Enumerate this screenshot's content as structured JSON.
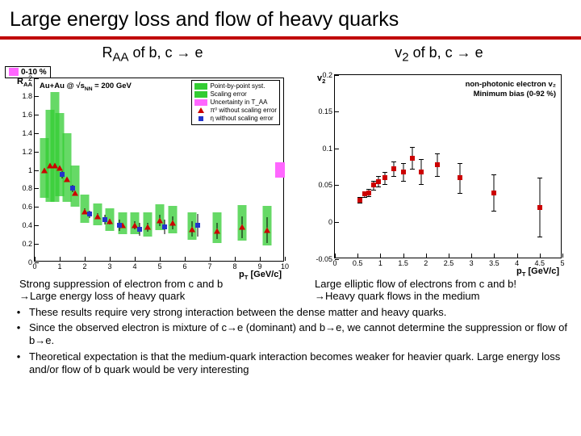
{
  "title": "Large energy loss and flow of heavy quarks",
  "left_chart": {
    "subtitle_html": "R<sub>AA</sub> of b, c → e",
    "type": "scatter",
    "background_color": "#ffffff",
    "ylim": [
      0,
      2.0
    ],
    "xlim": [
      0,
      10
    ],
    "xticks": [
      0,
      1,
      2,
      3,
      4,
      5,
      6,
      7,
      8,
      9,
      10
    ],
    "yticks": [
      0,
      0.2,
      0.4,
      0.6,
      0.8,
      1.0,
      1.2,
      1.4,
      1.6,
      1.8,
      2.0
    ],
    "y_axis_title": "R_AA",
    "x_axis_title": "p_T [GeV/c]",
    "info_badge": {
      "color_sw": "#ff66ff",
      "text": "0-10 %"
    },
    "au_text": "Au+Au @ √s_NN = 200 GeV",
    "legend": {
      "items": [
        {
          "swatch_color": "#33cc33",
          "swatch_type": "box",
          "label": "Point-by-point syst."
        },
        {
          "swatch_color": "#33cc33",
          "swatch_type": "box",
          "label": "Scaling error"
        },
        {
          "swatch_color": "#ff66ff",
          "swatch_type": "box",
          "label": "Uncertainty in T_AA"
        },
        {
          "swatch_color": "#cc0000",
          "swatch_type": "tri",
          "label": "π⁰ without scaling error"
        },
        {
          "swatch_color": "#2233cc",
          "swatch_type": "sq",
          "label": "η without scaling error"
        }
      ]
    },
    "band_color": "#33cc33",
    "pink_box_color": "#ff66ff",
    "series_tri": {
      "color": "#cc0000",
      "points": [
        {
          "x": 0.4,
          "y": 1.0,
          "e": 0.02,
          "bl": 0.3,
          "bh": 0.35
        },
        {
          "x": 0.6,
          "y": 1.05,
          "e": 0.02,
          "bl": 0.4,
          "bh": 0.6
        },
        {
          "x": 0.8,
          "y": 1.05,
          "e": 0.02,
          "bl": 0.4,
          "bh": 0.8
        },
        {
          "x": 1.0,
          "y": 1.02,
          "e": 0.02,
          "bl": 0.3,
          "bh": 0.6
        },
        {
          "x": 1.3,
          "y": 0.9,
          "e": 0.02,
          "bl": 0.25,
          "bh": 0.5
        },
        {
          "x": 1.6,
          "y": 0.75,
          "e": 0.02,
          "bl": 0.15,
          "bh": 0.3
        },
        {
          "x": 2.0,
          "y": 0.55,
          "e": 0.03,
          "bl": 0.12,
          "bh": 0.18
        },
        {
          "x": 2.5,
          "y": 0.5,
          "e": 0.03,
          "bl": 0.1,
          "bh": 0.14
        },
        {
          "x": 3.0,
          "y": 0.44,
          "e": 0.03,
          "bl": 0.1,
          "bh": 0.14
        },
        {
          "x": 3.5,
          "y": 0.4,
          "e": 0.03,
          "bl": 0.1,
          "bh": 0.14
        },
        {
          "x": 4.0,
          "y": 0.4,
          "e": 0.04,
          "bl": 0.1,
          "bh": 0.14
        },
        {
          "x": 4.5,
          "y": 0.38,
          "e": 0.05,
          "bl": 0.1,
          "bh": 0.16
        },
        {
          "x": 5.0,
          "y": 0.45,
          "e": 0.06,
          "bl": 0.1,
          "bh": 0.18
        },
        {
          "x": 5.5,
          "y": 0.43,
          "e": 0.07,
          "bl": 0.12,
          "bh": 0.18
        },
        {
          "x": 6.3,
          "y": 0.36,
          "e": 0.08,
          "bl": 0.12,
          "bh": 0.18
        },
        {
          "x": 7.3,
          "y": 0.34,
          "e": 0.09,
          "bl": 0.13,
          "bh": 0.2
        },
        {
          "x": 8.3,
          "y": 0.38,
          "e": 0.12,
          "bl": 0.15,
          "bh": 0.24
        },
        {
          "x": 9.3,
          "y": 0.35,
          "e": 0.14,
          "bl": 0.17,
          "bh": 0.26
        }
      ]
    },
    "series_sq": {
      "color": "#2233cc",
      "points": [
        {
          "x": 1.1,
          "y": 0.95,
          "e": 0.04
        },
        {
          "x": 1.5,
          "y": 0.8,
          "e": 0.04
        },
        {
          "x": 2.2,
          "y": 0.52,
          "e": 0.04
        },
        {
          "x": 2.8,
          "y": 0.46,
          "e": 0.05
        },
        {
          "x": 3.4,
          "y": 0.4,
          "e": 0.06
        },
        {
          "x": 4.2,
          "y": 0.36,
          "e": 0.07
        },
        {
          "x": 5.2,
          "y": 0.38,
          "e": 0.08
        },
        {
          "x": 6.5,
          "y": 0.4,
          "e": 0.12
        }
      ]
    }
  },
  "right_chart": {
    "subtitle_html": "v<sub>2</sub> of b, c → e",
    "type": "scatter",
    "background_color": "#ffffff",
    "ylim": [
      -0.05,
      0.2
    ],
    "xlim": [
      0,
      5
    ],
    "xticks": [
      0,
      0.5,
      1,
      1.5,
      2,
      2.5,
      3,
      3.5,
      4,
      4.5,
      5
    ],
    "yticks": [
      -0.05,
      0,
      0.05,
      0.1,
      0.15,
      0.2
    ],
    "y_axis_title": "v_2",
    "x_axis_title": "p_T [GeV/c]",
    "label1": "non-photonic electron v₂",
    "label2": "Minimum bias (0-92 %)",
    "series": {
      "color": "#cc0000",
      "points": [
        {
          "x": 0.55,
          "y": 0.03,
          "e": 0.004
        },
        {
          "x": 0.65,
          "y": 0.038,
          "e": 0.004
        },
        {
          "x": 0.75,
          "y": 0.04,
          "e": 0.005
        },
        {
          "x": 0.85,
          "y": 0.05,
          "e": 0.006
        },
        {
          "x": 0.95,
          "y": 0.055,
          "e": 0.007
        },
        {
          "x": 1.1,
          "y": 0.06,
          "e": 0.008
        },
        {
          "x": 1.3,
          "y": 0.072,
          "e": 0.01
        },
        {
          "x": 1.5,
          "y": 0.068,
          "e": 0.012
        },
        {
          "x": 1.7,
          "y": 0.087,
          "e": 0.015
        },
        {
          "x": 1.9,
          "y": 0.068,
          "e": 0.017
        },
        {
          "x": 2.25,
          "y": 0.078,
          "e": 0.015
        },
        {
          "x": 2.75,
          "y": 0.06,
          "e": 0.02
        },
        {
          "x": 3.5,
          "y": 0.04,
          "e": 0.025
        },
        {
          "x": 4.5,
          "y": 0.02,
          "e": 0.04
        }
      ]
    }
  },
  "caption_left_l1": "Strong suppression of electron from c and b",
  "caption_left_l2": "→Large energy loss of heavy quark",
  "caption_right_l1": "Large elliptic flow of electrons from c and b!",
  "caption_right_l2": "→Heavy quark flows in the medium",
  "bullets": [
    "These results require very strong interaction between the dense matter and heavy quarks.",
    "Since the observed electron is mixture of c→e (dominant) and b→e, we cannot determine the suppression or flow of b→e.",
    "Theoretical expectation is that the medium-quark interaction becomes weaker for heavier quark. Large energy loss and/or flow of b quark would be very interesting"
  ],
  "colors": {
    "rule": "#c00000",
    "grid": "#000000"
  }
}
